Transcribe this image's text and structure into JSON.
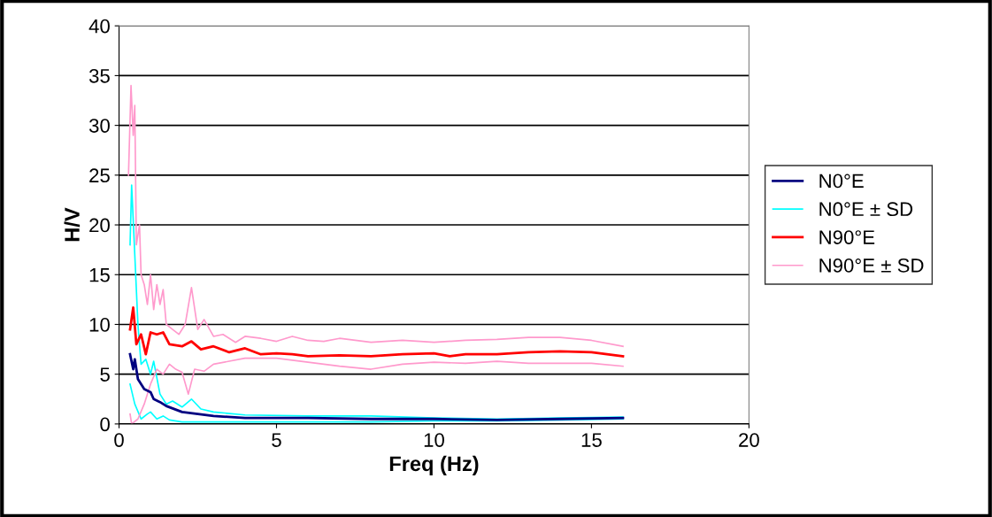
{
  "chart_data": {
    "type": "line",
    "xlabel": "Freq (Hz)",
    "ylabel": "H/V",
    "xlim": [
      0,
      20
    ],
    "ylim": [
      0,
      40
    ],
    "xticks": [
      0,
      5,
      10,
      15,
      20
    ],
    "yticks": [
      0,
      5,
      10,
      15,
      20,
      25,
      30,
      35,
      40
    ],
    "grid": "y",
    "legend": "right",
    "marker": "none",
    "line_style": "solid",
    "series": [
      {
        "name": "N0°E",
        "color": "#000080",
        "x": [
          0.35,
          0.45,
          0.5,
          0.6,
          0.8,
          1.0,
          1.1,
          1.3,
          1.5,
          2,
          3,
          4,
          6,
          8,
          10,
          12,
          14,
          16
        ],
        "values": [
          7,
          5.5,
          6.5,
          4.5,
          3.5,
          3.2,
          2.5,
          2.2,
          1.8,
          1.2,
          0.8,
          0.6,
          0.6,
          0.5,
          0.5,
          0.4,
          0.5,
          0.6
        ]
      },
      {
        "name": "N0°E ± SD",
        "color": "#00ffff",
        "x": [
          0.35,
          0.4,
          0.5,
          0.6,
          0.7,
          0.85,
          1.0,
          1.1,
          1.3,
          1.5,
          1.7,
          2.0,
          2.3,
          2.6,
          3,
          4,
          6,
          8,
          10,
          12,
          14,
          16
        ],
        "values": [
          18,
          24,
          17,
          10,
          6,
          6.5,
          5,
          6.3,
          3,
          2,
          2.3,
          1.7,
          2.5,
          1.5,
          1.2,
          0.9,
          0.8,
          0.8,
          0.6,
          0.5,
          0.6,
          0.7
        ]
      },
      {
        "color": "#00ffff",
        "x": [
          0.35,
          0.5,
          0.7,
          0.9,
          1.0,
          1.2,
          1.4,
          1.6,
          2.0,
          3,
          5,
          8,
          10,
          12,
          14,
          16
        ],
        "values": [
          4,
          2,
          0.5,
          1,
          1.2,
          0.5,
          0.8,
          0.4,
          0.2,
          0.2,
          0.2,
          0.2,
          0.3,
          0.3,
          0.4,
          0.5
        ]
      },
      {
        "name": "N90°E",
        "color": "#ff0000",
        "x": [
          0.35,
          0.45,
          0.55,
          0.7,
          0.85,
          1.0,
          1.2,
          1.4,
          1.6,
          2.0,
          2.3,
          2.6,
          3.0,
          3.5,
          4.0,
          4.5,
          5.0,
          5.5,
          6,
          7,
          8,
          9,
          10,
          10.5,
          11,
          12,
          13,
          14,
          15,
          16
        ],
        "values": [
          9.5,
          11.7,
          8,
          9,
          7,
          9.2,
          9,
          9.2,
          8,
          7.8,
          8.3,
          7.5,
          7.8,
          7.2,
          7.6,
          7,
          7.1,
          7,
          6.8,
          6.9,
          6.8,
          7.0,
          7.1,
          6.8,
          7.0,
          7.0,
          7.2,
          7.3,
          7.2,
          6.8
        ]
      },
      {
        "name": "N90°E ± SD",
        "color": "#ff99cc",
        "x": [
          0.3,
          0.38,
          0.45,
          0.5,
          0.55,
          0.65,
          0.7,
          0.8,
          0.9,
          1.0,
          1.1,
          1.2,
          1.3,
          1.4,
          1.5,
          1.7,
          1.9,
          2.1,
          2.3,
          2.5,
          2.7,
          3.0,
          3.3,
          3.7,
          4.0,
          4.5,
          5,
          5.5,
          6,
          6.5,
          7,
          8,
          9,
          10,
          11,
          12,
          13,
          14,
          15,
          16
        ],
        "values": [
          25,
          34,
          29,
          32,
          18,
          20,
          15,
          14,
          12,
          15,
          11.5,
          14,
          12,
          13.5,
          10,
          9.5,
          9,
          10,
          13.7,
          9.5,
          10.5,
          8.8,
          9,
          8.2,
          8.8,
          8.6,
          8.3,
          8.8,
          8.4,
          8.3,
          8.6,
          8.2,
          8.4,
          8.2,
          8.4,
          8.5,
          8.7,
          8.7,
          8.4,
          7.8
        ]
      },
      {
        "color": "#ff99cc",
        "x": [
          0.35,
          0.4,
          0.6,
          0.8,
          1.0,
          1.2,
          1.4,
          1.6,
          1.8,
          2.0,
          2.2,
          2.4,
          2.7,
          3.0,
          3.5,
          4,
          5,
          6,
          7,
          8,
          9,
          10,
          11,
          12,
          13,
          14,
          15,
          16
        ],
        "values": [
          1,
          0,
          0.5,
          2,
          4,
          5.5,
          5,
          6,
          5.5,
          5.2,
          3,
          5.5,
          5.3,
          6,
          6.3,
          6.6,
          6.6,
          6.2,
          5.8,
          5.5,
          6.0,
          6.2,
          6.1,
          6.3,
          6.1,
          6.1,
          6.1,
          5.8
        ]
      }
    ]
  }
}
